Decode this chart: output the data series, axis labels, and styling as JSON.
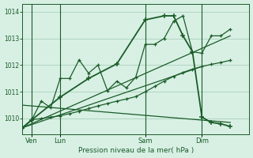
{
  "background_color": "#cce8d8",
  "plot_bg_color": "#d8f0e4",
  "grid_color": "#aacfbb",
  "line_color": "#1a5c28",
  "title": "Pression niveau de la mer( hPa )",
  "ylim": [
    1009.4,
    1014.3
  ],
  "yticks": [
    1010,
    1011,
    1012,
    1013,
    1014
  ],
  "xlim": [
    0,
    24
  ],
  "x_tick_labels": [
    "Ven",
    "Lun",
    "Sam",
    "Dim"
  ],
  "x_tick_positions": [
    1,
    4,
    13,
    19
  ],
  "x_vline_positions": [
    1,
    4,
    13,
    19
  ],
  "series_jagged_x": [
    0,
    1,
    2,
    3,
    4,
    5,
    6,
    7,
    8,
    9,
    10,
    11,
    12,
    13,
    14,
    15,
    16,
    17,
    18,
    19,
    20,
    21,
    22
  ],
  "series_jagged_y": [
    1009.65,
    1009.95,
    1010.65,
    1010.4,
    1011.5,
    1011.5,
    1012.2,
    1011.7,
    1012.0,
    1011.05,
    1011.4,
    1011.15,
    1011.55,
    1012.78,
    1012.78,
    1013.0,
    1013.65,
    1013.85,
    1012.5,
    1012.45,
    1013.1,
    1013.1,
    1013.35
  ],
  "series_smooth_x": [
    0,
    1,
    2,
    3,
    4,
    5,
    6,
    7,
    8,
    9,
    10,
    11,
    12,
    13,
    14,
    15,
    16,
    17,
    18,
    19,
    20,
    21,
    22
  ],
  "series_smooth_y": [
    1009.65,
    1009.95,
    1010.0,
    1010.05,
    1010.1,
    1010.18,
    1010.27,
    1010.37,
    1010.47,
    1010.56,
    1010.65,
    1010.73,
    1010.82,
    1011.0,
    1011.2,
    1011.4,
    1011.58,
    1011.73,
    1011.85,
    1011.95,
    1012.03,
    1012.1,
    1012.18
  ],
  "series_bold_x": [
    0,
    1,
    4,
    7,
    10,
    13,
    15,
    16,
    17,
    18,
    19,
    20,
    21,
    22
  ],
  "series_bold_y": [
    1009.65,
    1009.95,
    1010.8,
    1011.5,
    1012.05,
    1013.7,
    1013.85,
    1013.85,
    1013.1,
    1012.5,
    1010.05,
    1009.85,
    1009.8,
    1009.7
  ],
  "trend1_x": [
    0,
    22
  ],
  "trend1_y": [
    1009.65,
    1013.1
  ],
  "trend2_x": [
    0,
    19
  ],
  "trend2_y": [
    1009.65,
    1011.95
  ],
  "trend3_x": [
    0,
    22
  ],
  "trend3_y": [
    1010.5,
    1009.85
  ]
}
